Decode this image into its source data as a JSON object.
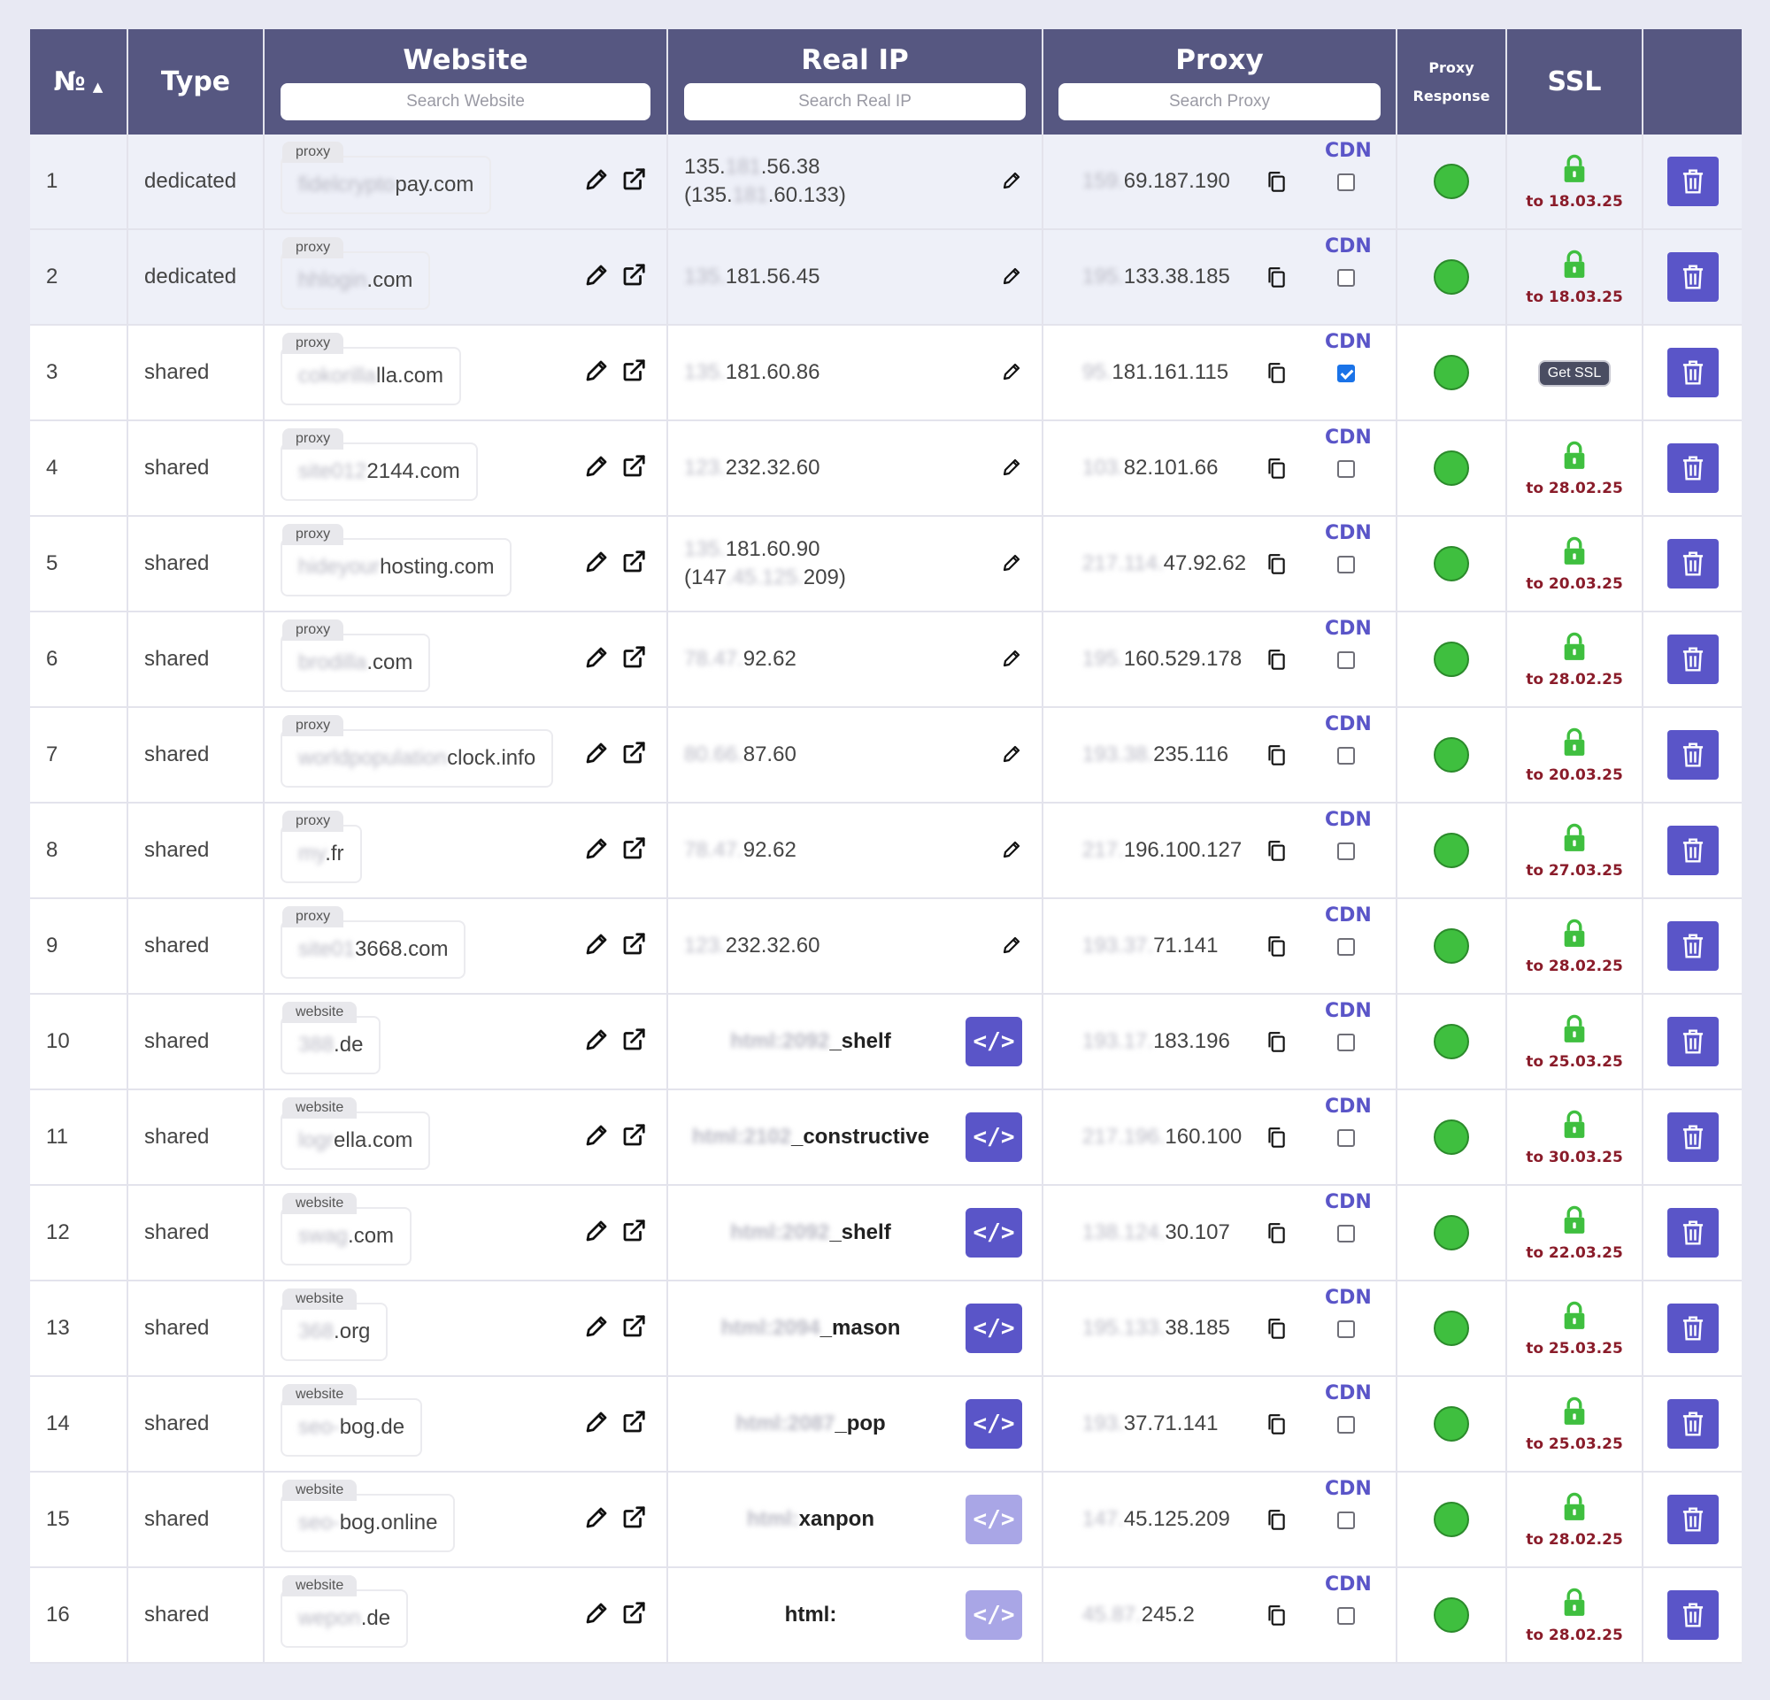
{
  "header": {
    "num": "№",
    "type": "Type",
    "website": "Website",
    "website_search_placeholder": "Search Website",
    "real_ip": "Real IP",
    "real_ip_search_placeholder": "Search Real IP",
    "proxy": "Proxy",
    "proxy_search_placeholder": "Search Proxy",
    "proxy_response_line1": "Proxy",
    "proxy_response_line2": "Response",
    "ssl": "SSL"
  },
  "cdn_label": "CDN",
  "colors": {
    "header_bg": "#565781",
    "accent": "#5a55c8",
    "status_ok": "#3fbf3f",
    "ssl_date": "#8a1c2a"
  },
  "rows": [
    {
      "num": "1",
      "type": "dedicated",
      "tag": "proxy",
      "site_hidden": "fidelcrypto",
      "site": "pay.com",
      "ip_hidden": "135.",
      "ip_mid": "181",
      "ip": ".56.38",
      "ip2_open": "(135.",
      "ip2_hidden": "181",
      "ip2": ".60.133)",
      "proxy_hidden": "159.",
      "proxy": "69.187.190",
      "cdn": false,
      "ssl": "to 18.03.25"
    },
    {
      "num": "2",
      "type": "dedicated",
      "tag": "proxy",
      "site_hidden": "hhlogin",
      "site": ".com",
      "ip_hidden": "135.",
      "ip": "181.56.45",
      "proxy_hidden": "195.",
      "proxy": "133.38.185",
      "cdn": false,
      "ssl": "to 18.03.25"
    },
    {
      "num": "3",
      "type": "shared",
      "tag": "proxy",
      "site_hidden": "cokorilla",
      "site": "lla.com",
      "ip_hidden": "135.",
      "ip": "181.60.86",
      "proxy_hidden": "95.",
      "proxy": "181.161.115",
      "cdn": true,
      "ssl_button": "Get SSL"
    },
    {
      "num": "4",
      "type": "shared",
      "tag": "proxy",
      "site_hidden": "site012",
      "site": "2144.com",
      "ip_hidden": "123.",
      "ip": "232.32.60",
      "proxy_hidden": "103.",
      "proxy": "82.101.66",
      "cdn": false,
      "ssl": "to 28.02.25"
    },
    {
      "num": "5",
      "type": "shared",
      "tag": "proxy",
      "site_hidden": "hideyour",
      "site": "hosting.com",
      "ip_hidden": "135.",
      "ip": "181.60.90",
      "ip2_open": "(147",
      "ip2_hidden": ".45.125.",
      "ip2": "209)",
      "proxy_hidden": "217.114.",
      "proxy": "47.92.62",
      "cdn": false,
      "ssl": "to 20.03.25"
    },
    {
      "num": "6",
      "type": "shared",
      "tag": "proxy",
      "site_hidden": "brodilla",
      "site": ".com",
      "ip_hidden": "78.47.",
      "ip": "92.62",
      "proxy_hidden": "195.",
      "proxy": "160.529.178",
      "cdn": false,
      "ssl": "to 28.02.25"
    },
    {
      "num": "7",
      "type": "shared",
      "tag": "proxy",
      "site_hidden": "worldpopulation",
      "site": "clock.info",
      "ip_hidden": "80.66.",
      "ip": "87.60",
      "proxy_hidden": "193.38.",
      "proxy": "235.116",
      "cdn": false,
      "ssl": "to 20.03.25"
    },
    {
      "num": "8",
      "type": "shared",
      "tag": "proxy",
      "site_hidden": "my",
      "site": ".fr",
      "ip_hidden": "78.47.",
      "ip": "92.62",
      "proxy_hidden": "217.",
      "proxy": "196.100.127",
      "cdn": false,
      "ssl": "to 27.03.25"
    },
    {
      "num": "9",
      "type": "shared",
      "tag": "proxy",
      "site_hidden": "site01",
      "site": "3668.com",
      "ip_hidden": "123.",
      "ip": "232.32.60",
      "proxy_hidden": "193.37.",
      "proxy": "71.141",
      "cdn": false,
      "ssl": "to 28.02.25"
    },
    {
      "num": "10",
      "type": "shared",
      "tag": "website",
      "site_hidden": "388",
      "site": ".de",
      "html_hidden": "html:2092",
      "html": "_shelf",
      "html_faded": false,
      "proxy_hidden": "193.17.",
      "proxy": "183.196",
      "cdn": false,
      "ssl": "to 25.03.25"
    },
    {
      "num": "11",
      "type": "shared",
      "tag": "website",
      "site_hidden": "logr",
      "site": "ella.com",
      "html_hidden": "html:2102",
      "html": "_constructive",
      "html_faded": false,
      "proxy_hidden": "217.196.",
      "proxy": "160.100",
      "cdn": false,
      "ssl": "to 30.03.25"
    },
    {
      "num": "12",
      "type": "shared",
      "tag": "website",
      "site_hidden": "swag",
      "site": ".com",
      "html_hidden": "html:2092",
      "html": "_shelf",
      "html_faded": false,
      "proxy_hidden": "138.124.",
      "proxy": "30.107",
      "cdn": false,
      "ssl": "to 22.03.25"
    },
    {
      "num": "13",
      "type": "shared",
      "tag": "website",
      "site_hidden": "368",
      "site": ".org",
      "html_hidden": "html:2094",
      "html": "_mason",
      "html_faded": false,
      "proxy_hidden": "195.133.",
      "proxy": "38.185",
      "cdn": false,
      "ssl": "to 25.03.25"
    },
    {
      "num": "14",
      "type": "shared",
      "tag": "website",
      "site_hidden": "seo-",
      "site": "bog.de",
      "html_hidden": "html:2087",
      "html": "_pop",
      "html_faded": false,
      "proxy_hidden": "193.",
      "proxy": "37.71.141",
      "cdn": false,
      "ssl": "to 25.03.25"
    },
    {
      "num": "15",
      "type": "shared",
      "tag": "website",
      "site_hidden": "seo-",
      "site": "bog.online",
      "html_hidden": "html:",
      "html": "xanpon",
      "html_faded": true,
      "proxy_hidden": "147.",
      "proxy": "45.125.209",
      "cdn": false,
      "ssl": "to 28.02.25"
    },
    {
      "num": "16",
      "type": "shared",
      "tag": "website",
      "site_hidden": "wepon",
      "site": ".de",
      "html_hidden": "",
      "html": "html:",
      "html_faded": true,
      "proxy_hidden": "45.87.",
      "proxy": "245.2",
      "cdn": false,
      "ssl": "to 28.02.25"
    }
  ]
}
